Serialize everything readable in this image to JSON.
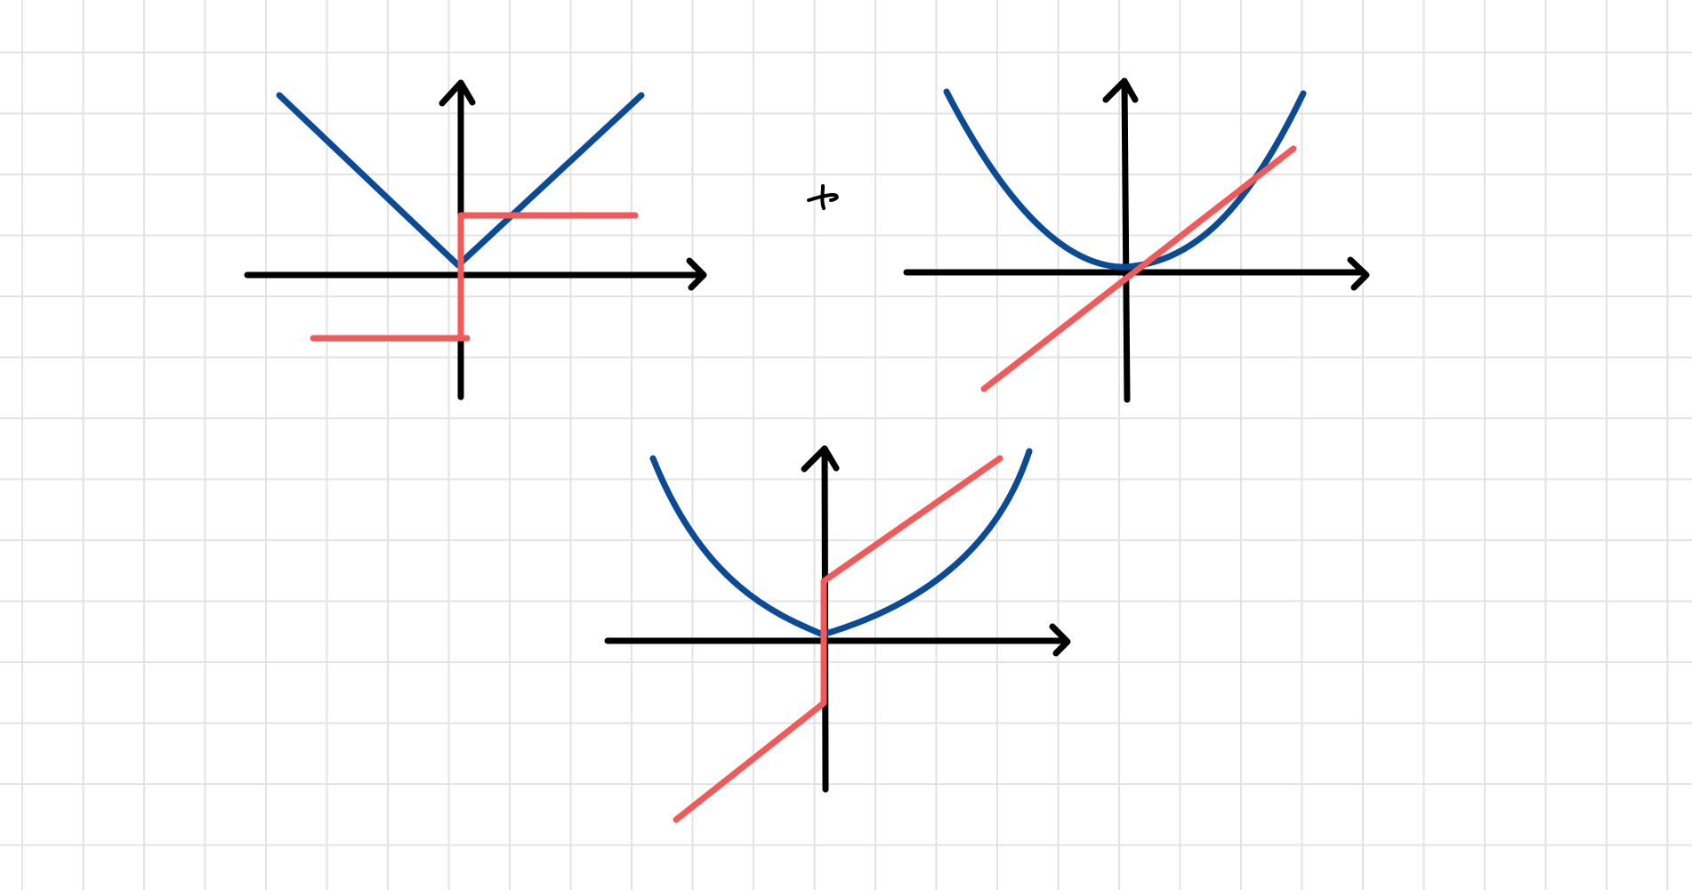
{
  "colors": {
    "background": "#ffffff",
    "grid": "#e3e3e3",
    "axis": "#000000",
    "blue": "#0b4a94",
    "red": "#f25a5a"
  },
  "canvas": {
    "type": "whiteboard-grid",
    "operator_icon": "plus-icon"
  },
  "diagrams": [
    {
      "id": "top-left",
      "blue_curve": "absolute-value-v-shape",
      "red_curve": "step-function"
    },
    {
      "id": "top-right",
      "blue_curve": "parabola",
      "red_curve": "diagonal-line"
    },
    {
      "id": "bottom-center",
      "blue_curve": "asymmetric-parabola",
      "red_curve": "piecewise-line-with-jump"
    }
  ]
}
